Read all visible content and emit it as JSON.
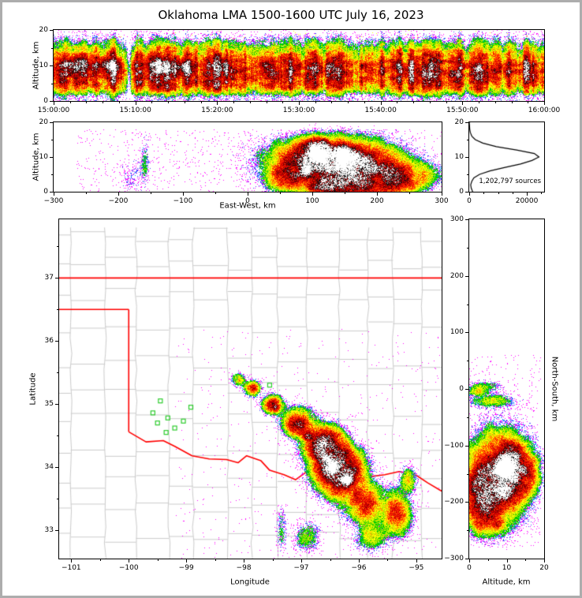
{
  "title": "Oklahoma LMA 1500-1600 UTC July 16, 2023",
  "colors": {
    "background": "#ffffff",
    "figure_border": "#adadad",
    "axis": "#000000",
    "county_line": "#cccccc",
    "state_border": "#ff0000",
    "station_marker": "#2ecc2e",
    "histogram_line": "#000000",
    "density_levels": [
      {
        "t": 0.03,
        "c": "#ff00ff"
      },
      {
        "t": 0.055,
        "c": "#4040ff"
      },
      {
        "t": 0.085,
        "c": "#00aaff"
      },
      {
        "t": 0.125,
        "c": "#00cc00"
      },
      {
        "t": 0.175,
        "c": "#b8e800"
      },
      {
        "t": 0.235,
        "c": "#ffff00"
      },
      {
        "t": 0.3,
        "c": "#ff9900"
      },
      {
        "t": 0.42,
        "c": "#ff2a00"
      },
      {
        "t": 0.58,
        "c": "#cc0000"
      },
      {
        "t": 0.72,
        "c": "#7a0000"
      },
      {
        "t": 0.84,
        "c": "#111111"
      },
      {
        "t": 0.93,
        "c": "#909090"
      },
      {
        "t": 1.0,
        "c": "#d8d8d8"
      },
      {
        "t": 99,
        "c": "#ffffff"
      }
    ]
  },
  "chart_data": [
    {
      "id": "time_height",
      "type": "heatmap",
      "description": "LMA VHF source density, altitude vs time, 1500-1600 UTC",
      "ylabel": "Altitude, km",
      "x_range_minutes": [
        0,
        60
      ],
      "xtick_values": [
        0,
        10,
        20,
        30,
        40,
        50,
        60
      ],
      "xtick_labels": [
        "15:00:00",
        "15:10:00",
        "15:20:00",
        "15:30:00",
        "15:40:00",
        "15:50:00",
        "16:00:00"
      ],
      "ylim": [
        0,
        20
      ],
      "ytick_values": [
        0,
        10,
        20
      ],
      "dense_band_alt_km": [
        4,
        14
      ],
      "core_blobs": [
        [
          2.7,
          10.3,
          0.52,
          16,
          1.9
        ],
        [
          6.9,
          10.0,
          0.5,
          14,
          1.8
        ],
        [
          12.6,
          10.2,
          0.48,
          12,
          1.7
        ],
        [
          15.9,
          9.8,
          0.45,
          10,
          1.6
        ],
        [
          20.7,
          10.0,
          0.4,
          8,
          1.4
        ],
        [
          25.8,
          10.2,
          0.33,
          6,
          1.2
        ],
        [
          30.0,
          10.0,
          0.3,
          5,
          1.1
        ],
        [
          33.9,
          10.3,
          0.3,
          5,
          1.0
        ],
        [
          37.8,
          10.0,
          0.28,
          4,
          1.0
        ],
        [
          42.0,
          10.2,
          0.28,
          4,
          1.0
        ],
        [
          46.2,
          10.0,
          0.26,
          4,
          0.9
        ],
        [
          50.4,
          10.3,
          0.26,
          4,
          0.9
        ],
        [
          54.6,
          10.0,
          0.28,
          4,
          0.9
        ],
        [
          57.9,
          10.1,
          0.3,
          5,
          1.0
        ]
      ],
      "gap_minutes": [
        [
          9.2,
          0.85
        ],
        [
          37.2,
          0.3
        ]
      ]
    },
    {
      "id": "ew_height",
      "type": "heatmap",
      "xlabel": "East-West, km",
      "ylabel": "Altitude, km",
      "xlim": [
        -300,
        300
      ],
      "xtick_values": [
        -300,
        -200,
        -100,
        0,
        100,
        200,
        300
      ],
      "ylim": [
        0,
        20
      ],
      "ytick_values": [
        0,
        10,
        20
      ],
      "blobs": [
        [
          130,
          9,
          1.0,
          70,
          5
        ],
        [
          110,
          12,
          0.95,
          20,
          2.5
        ],
        [
          150,
          11,
          0.85,
          16,
          2.2
        ],
        [
          90,
          6,
          0.6,
          10,
          2
        ],
        [
          200,
          6,
          0.55,
          45,
          3.5
        ],
        [
          60,
          4,
          0.4,
          25,
          3
        ],
        [
          240,
          3,
          0.3,
          25,
          2.5
        ],
        [
          170,
          1,
          0.5,
          60,
          3
        ],
        [
          120,
          2,
          0.4,
          30,
          2.5
        ],
        [
          270,
          5,
          0.12,
          30,
          3
        ],
        [
          -160,
          8,
          0.07,
          6,
          6
        ],
        [
          -180,
          4,
          0.04,
          15,
          4
        ]
      ],
      "bg_speckle": {
        "amp": 0.013,
        "x": [
          -265,
          300
        ],
        "y": [
          0,
          18
        ]
      }
    },
    {
      "id": "alt_histogram",
      "type": "line",
      "annotation": "1,202,797 sources",
      "xlim": [
        0,
        26000
      ],
      "xtick_values": [
        0,
        20000
      ],
      "xtick_labels": [
        "0",
        "20000"
      ],
      "xminor_values": [
        5000,
        10000,
        15000,
        25000
      ],
      "ylim": [
        0,
        20
      ],
      "ytick_values": [
        0,
        10,
        20
      ],
      "altitude_km": [
        0,
        1,
        2,
        3,
        4,
        5,
        6,
        7,
        8,
        9,
        10,
        11,
        12,
        13,
        14,
        15,
        16,
        17,
        18,
        19,
        20
      ],
      "source_counts": [
        1200,
        700,
        500,
        900,
        1600,
        3600,
        7200,
        12500,
        17800,
        21800,
        24200,
        22600,
        16400,
        9400,
        4700,
        2100,
        900,
        400,
        180,
        80,
        30
      ]
    },
    {
      "id": "map",
      "type": "heatmap",
      "xlabel": "Longitude",
      "ylabel": "Latitude",
      "xlim": [
        -101.21,
        -94.56
      ],
      "ylim": [
        32.55,
        37.93
      ],
      "xtick_values": [
        -101,
        -100,
        -99,
        -98,
        -97,
        -96,
        -95
      ],
      "ytick_values": [
        33,
        34,
        35,
        36,
        37
      ],
      "state_borders": [
        [
          [
            -101.21,
            37.0
          ],
          [
            -94.56,
            37.0
          ]
        ],
        [
          [
            -101.21,
            36.5
          ],
          [
            -100.0,
            36.5
          ]
        ],
        [
          [
            -100.0,
            36.5
          ],
          [
            -100.0,
            34.56
          ]
        ],
        [
          [
            -100.0,
            34.56
          ],
          [
            -99.7,
            34.4
          ],
          [
            -99.4,
            34.42
          ],
          [
            -99.2,
            34.33
          ],
          [
            -98.9,
            34.18
          ],
          [
            -98.6,
            34.13
          ],
          [
            -98.3,
            34.12
          ],
          [
            -98.1,
            34.07
          ],
          [
            -97.95,
            34.18
          ],
          [
            -97.7,
            34.1
          ],
          [
            -97.55,
            33.95
          ],
          [
            -97.3,
            33.88
          ],
          [
            -97.1,
            33.8
          ],
          [
            -96.9,
            33.93
          ],
          [
            -96.6,
            33.85
          ],
          [
            -96.35,
            33.7
          ],
          [
            -96.1,
            33.75
          ],
          [
            -95.8,
            33.85
          ],
          [
            -95.55,
            33.88
          ],
          [
            -95.3,
            33.93
          ],
          [
            -95.0,
            33.87
          ],
          [
            -94.8,
            33.75
          ],
          [
            -94.56,
            33.62
          ]
        ]
      ],
      "stations": [
        [
          -98.15,
          35.42
        ],
        [
          -97.55,
          35.3
        ],
        [
          -99.45,
          35.05
        ],
        [
          -99.58,
          34.86
        ],
        [
          -99.5,
          34.7
        ],
        [
          -99.32,
          34.78
        ],
        [
          -99.2,
          34.62
        ],
        [
          -99.05,
          34.73
        ],
        [
          -99.35,
          34.55
        ],
        [
          -98.92,
          34.95
        ]
      ],
      "blobs": [
        [
          -96.35,
          33.95,
          1.05,
          0.33,
          0.3
        ],
        [
          -96.6,
          34.35,
          0.85,
          0.28,
          0.24
        ],
        [
          -97.05,
          34.7,
          0.6,
          0.22,
          0.18
        ],
        [
          -97.5,
          35.0,
          0.45,
          0.15,
          0.12
        ],
        [
          -97.85,
          35.25,
          0.35,
          0.12,
          0.1
        ],
        [
          -98.1,
          35.4,
          0.22,
          0.1,
          0.08
        ],
        [
          -95.9,
          33.45,
          0.5,
          0.28,
          0.25
        ],
        [
          -95.35,
          33.25,
          0.35,
          0.22,
          0.28
        ],
        [
          -95.8,
          32.9,
          0.15,
          0.25,
          0.2
        ],
        [
          -95.15,
          33.8,
          0.18,
          0.12,
          0.18
        ],
        [
          -96.45,
          34.0,
          0.9,
          0.1,
          0.08
        ],
        [
          -96.2,
          33.8,
          0.8,
          0.09,
          0.08
        ],
        [
          -96.55,
          34.15,
          0.5,
          0.07,
          0.06
        ],
        [
          -96.9,
          34.5,
          0.45,
          0.07,
          0.06
        ],
        [
          -97.45,
          34.95,
          0.35,
          0.05,
          0.05
        ],
        [
          -97.35,
          33.0,
          0.09,
          0.08,
          0.3
        ],
        [
          -96.9,
          32.9,
          0.12,
          0.2,
          0.2
        ]
      ],
      "bg_speckle": {
        "amp": 0.006,
        "x": [
          -99.2,
          -94.6
        ],
        "y": [
          32.55,
          36.2
        ]
      }
    },
    {
      "id": "ns_height",
      "type": "heatmap",
      "xlabel": "Altitude, km",
      "ylabel": "North-South, km",
      "xlim": [
        0,
        20
      ],
      "xtick_values": [
        0,
        10,
        20
      ],
      "ylim": [
        -300,
        300
      ],
      "ytick_values": [
        -300,
        -200,
        -100,
        0,
        100,
        200,
        300
      ],
      "blobs": [
        [
          8,
          -150,
          1.0,
          6,
          55
        ],
        [
          10,
          -140,
          0.95,
          2.5,
          20
        ],
        [
          9,
          -180,
          0.85,
          2.2,
          16
        ],
        [
          5,
          -225,
          0.5,
          4,
          28
        ],
        [
          12,
          -120,
          0.6,
          3,
          18
        ],
        [
          2,
          -190,
          0.45,
          3,
          40
        ],
        [
          15,
          -150,
          0.35,
          3,
          30
        ],
        [
          6,
          -20,
          0.16,
          5,
          10
        ],
        [
          4,
          5,
          0.12,
          4,
          8
        ],
        [
          2,
          -5,
          0.18,
          2.5,
          6
        ]
      ],
      "bg_speckle": {
        "amp": 0.012,
        "x": [
          0,
          19
        ],
        "y": [
          -280,
          60
        ]
      }
    }
  ]
}
